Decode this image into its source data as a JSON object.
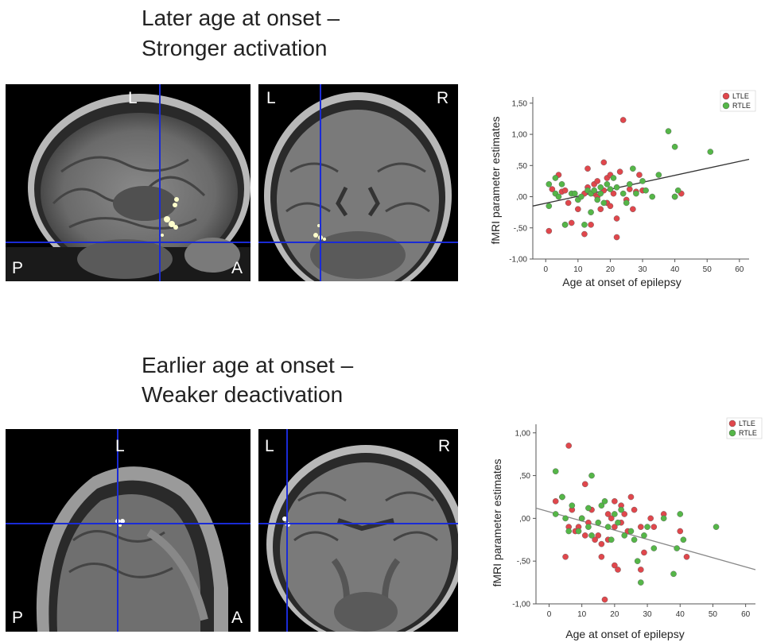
{
  "figure_top": {
    "heading_line1": "Later age at onset –",
    "heading_line2": "Stronger activation",
    "sagittal_labels": {
      "top": "L",
      "left": "P",
      "right": "A"
    },
    "coronal_labels": {
      "left": "L",
      "right": "R"
    }
  },
  "figure_bottom": {
    "heading_line1": "Earlier age at onset –",
    "heading_line2": "Weaker deactivation",
    "sagittal_labels": {
      "top": "L",
      "left": "P",
      "right": "A"
    },
    "coronal_labels": {
      "left": "L",
      "right": "R"
    }
  },
  "colors": {
    "ltle": "#e0474c",
    "rtle": "#55b648",
    "crosshair": "#1a2bd6",
    "fit_top": "#333333",
    "fit_bottom": "#888888"
  },
  "chart_data": [
    {
      "type": "scatter",
      "xlabel": "Age at onset of epilepsy",
      "ylabel": "fMRI parameter estimates",
      "xlim": [
        -4,
        63
      ],
      "ylim": [
        -1.0,
        1.6
      ],
      "xticks": [
        0,
        10,
        20,
        30,
        40,
        50,
        60
      ],
      "yticks": [
        -1.0,
        -0.5,
        0.0,
        0.5,
        1.0,
        1.5
      ],
      "ytick_labels": [
        "-1,00",
        "-,50",
        ",00",
        ",50",
        "1,00",
        "1,50"
      ],
      "legend": "top-right",
      "fit_line": {
        "x": [
          -4,
          63
        ],
        "y": [
          -0.15,
          0.6
        ]
      },
      "series": [
        {
          "name": "LTLE",
          "points": [
            [
              1,
              -0.55
            ],
            [
              2,
              0.12
            ],
            [
              4,
              0.35
            ],
            [
              5,
              0.08
            ],
            [
              6,
              0.1
            ],
            [
              6,
              -0.45
            ],
            [
              7,
              -0.1
            ],
            [
              8,
              -0.42
            ],
            [
              10,
              -0.2
            ],
            [
              12,
              0.05
            ],
            [
              12,
              -0.6
            ],
            [
              13,
              0.45
            ],
            [
              13,
              0.15
            ],
            [
              14,
              -0.45
            ],
            [
              15,
              0.2
            ],
            [
              15,
              0.05
            ],
            [
              16,
              0.0
            ],
            [
              16,
              0.25
            ],
            [
              17,
              -0.2
            ],
            [
              18,
              0.1
            ],
            [
              18,
              0.55
            ],
            [
              19,
              0.3
            ],
            [
              19,
              -0.1
            ],
            [
              20,
              0.35
            ],
            [
              20,
              -0.15
            ],
            [
              21,
              0.05
            ],
            [
              22,
              -0.65
            ],
            [
              22,
              -0.35
            ],
            [
              23,
              0.4
            ],
            [
              24,
              1.23
            ],
            [
              25,
              -0.05
            ],
            [
              26,
              0.12
            ],
            [
              27,
              -0.2
            ],
            [
              28,
              0.08
            ],
            [
              29,
              0.35
            ],
            [
              30,
              0.1
            ],
            [
              40,
              0.0
            ],
            [
              42,
              0.05
            ]
          ]
        },
        {
          "name": "RTLE",
          "points": [
            [
              1,
              0.2
            ],
            [
              1,
              -0.15
            ],
            [
              3,
              0.3
            ],
            [
              3,
              0.05
            ],
            [
              4,
              0.0
            ],
            [
              5,
              0.2
            ],
            [
              6,
              -0.45
            ],
            [
              8,
              0.05
            ],
            [
              9,
              0.05
            ],
            [
              10,
              -0.05
            ],
            [
              11,
              0.0
            ],
            [
              12,
              -0.45
            ],
            [
              13,
              0.1
            ],
            [
              14,
              0.05
            ],
            [
              14,
              -0.25
            ],
            [
              15,
              0.1
            ],
            [
              16,
              -0.05
            ],
            [
              17,
              0.15
            ],
            [
              17,
              0.05
            ],
            [
              18,
              -0.1
            ],
            [
              19,
              0.2
            ],
            [
              20,
              0.12
            ],
            [
              21,
              0.3
            ],
            [
              22,
              0.15
            ],
            [
              24,
              0.05
            ],
            [
              25,
              -0.1
            ],
            [
              26,
              0.2
            ],
            [
              27,
              0.45
            ],
            [
              28,
              0.05
            ],
            [
              30,
              0.25
            ],
            [
              31,
              0.1
            ],
            [
              33,
              0.0
            ],
            [
              35,
              0.35
            ],
            [
              38,
              1.05
            ],
            [
              40,
              0.0
            ],
            [
              40,
              0.8
            ],
            [
              41,
              0.1
            ],
            [
              51,
              0.72
            ]
          ]
        }
      ]
    },
    {
      "type": "scatter",
      "xlabel": "Age at onset of epilepsy",
      "ylabel": "fMRI parameter estimates",
      "xlim": [
        -4,
        63
      ],
      "ylim": [
        -1.0,
        1.1
      ],
      "xticks": [
        0,
        10,
        20,
        30,
        40,
        50,
        60
      ],
      "yticks": [
        -1.0,
        -0.5,
        0.0,
        0.5,
        1.0
      ],
      "ytick_labels": [
        "-1,00",
        "-,50",
        ",00",
        ",50",
        "1,00"
      ],
      "legend": "top-right",
      "fit_line": {
        "x": [
          -4,
          63
        ],
        "y": [
          0.12,
          -0.6
        ]
      },
      "series": [
        {
          "name": "LTLE",
          "points": [
            [
              2,
              0.2
            ],
            [
              4,
              0.25
            ],
            [
              5,
              -0.45
            ],
            [
              6,
              0.85
            ],
            [
              6,
              -0.1
            ],
            [
              7,
              0.1
            ],
            [
              8,
              -0.15
            ],
            [
              9,
              -0.1
            ],
            [
              10,
              0.0
            ],
            [
              11,
              0.4
            ],
            [
              11,
              -0.2
            ],
            [
              12,
              -0.05
            ],
            [
              13,
              0.1
            ],
            [
              14,
              -0.25
            ],
            [
              15,
              -0.2
            ],
            [
              16,
              -0.3
            ],
            [
              16,
              -0.45
            ],
            [
              17,
              -0.95
            ],
            [
              18,
              0.05
            ],
            [
              18,
              -0.25
            ],
            [
              19,
              0.0
            ],
            [
              20,
              0.2
            ],
            [
              20,
              -0.1
            ],
            [
              20,
              -0.55
            ],
            [
              21,
              -0.6
            ],
            [
              22,
              0.15
            ],
            [
              22,
              -0.05
            ],
            [
              23,
              0.05
            ],
            [
              24,
              -0.15
            ],
            [
              25,
              0.25
            ],
            [
              26,
              0.1
            ],
            [
              28,
              -0.1
            ],
            [
              28,
              -0.6
            ],
            [
              29,
              -0.4
            ],
            [
              31,
              0.0
            ],
            [
              32,
              -0.1
            ],
            [
              35,
              0.05
            ],
            [
              40,
              -0.15
            ],
            [
              42,
              -0.45
            ]
          ]
        },
        {
          "name": "RTLE",
          "points": [
            [
              2,
              0.55
            ],
            [
              2,
              0.05
            ],
            [
              4,
              0.25
            ],
            [
              5,
              0.0
            ],
            [
              6,
              -0.15
            ],
            [
              7,
              0.15
            ],
            [
              9,
              -0.15
            ],
            [
              10,
              0.0
            ],
            [
              12,
              0.12
            ],
            [
              12,
              -0.1
            ],
            [
              13,
              0.5
            ],
            [
              13,
              -0.2
            ],
            [
              15,
              -0.05
            ],
            [
              16,
              0.15
            ],
            [
              17,
              0.2
            ],
            [
              18,
              -0.1
            ],
            [
              19,
              -0.25
            ],
            [
              20,
              0.05
            ],
            [
              21,
              -0.05
            ],
            [
              22,
              0.1
            ],
            [
              23,
              -0.2
            ],
            [
              25,
              -0.15
            ],
            [
              26,
              -0.25
            ],
            [
              27,
              -0.5
            ],
            [
              28,
              -0.75
            ],
            [
              29,
              -0.2
            ],
            [
              30,
              -0.1
            ],
            [
              32,
              -0.35
            ],
            [
              35,
              0.0
            ],
            [
              38,
              -0.65
            ],
            [
              39,
              -0.35
            ],
            [
              40,
              0.05
            ],
            [
              41,
              -0.25
            ],
            [
              51,
              -0.1
            ]
          ]
        }
      ]
    }
  ]
}
